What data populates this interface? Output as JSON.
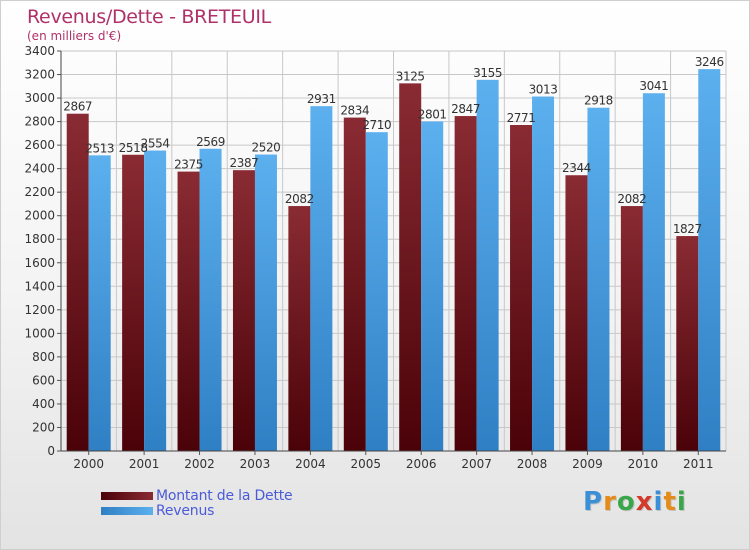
{
  "header": {
    "title": "Revenus/Dette - BRETEUIL",
    "subtitle": "(en milliers d'€)"
  },
  "legend": [
    {
      "label": "Montant de la Dette",
      "color": "#6e1218"
    },
    {
      "label": "Revenus",
      "color": "#4aa3e6"
    }
  ],
  "logo": {
    "text": "Proxiti",
    "colors": [
      "#3a8fd6",
      "#e48b1a",
      "#3aa64a",
      "#d43a2a",
      "#3a8fd6",
      "#e48b1a",
      "#3aa64a"
    ]
  },
  "chart_data": {
    "type": "bar",
    "categories": [
      "2000",
      "2001",
      "2002",
      "2003",
      "2004",
      "2005",
      "2006",
      "2007",
      "2008",
      "2009",
      "2010",
      "2011"
    ],
    "series": [
      {
        "name": "Montant de la Dette",
        "values": [
          2867,
          2518,
          2375,
          2387,
          2082,
          2834,
          3125,
          2847,
          2771,
          2344,
          2082,
          1827
        ]
      },
      {
        "name": "Revenus",
        "values": [
          2513,
          2554,
          2569,
          2520,
          2931,
          2710,
          2801,
          3155,
          3013,
          2918,
          3041,
          3246
        ]
      }
    ],
    "ylim": [
      0,
      3400
    ],
    "yticks": [
      0,
      200,
      400,
      600,
      800,
      1000,
      1200,
      1400,
      1600,
      1800,
      2000,
      2200,
      2400,
      2600,
      2800,
      3000,
      3200,
      3400
    ],
    "grid": true,
    "legend_position": "bottom-left"
  }
}
